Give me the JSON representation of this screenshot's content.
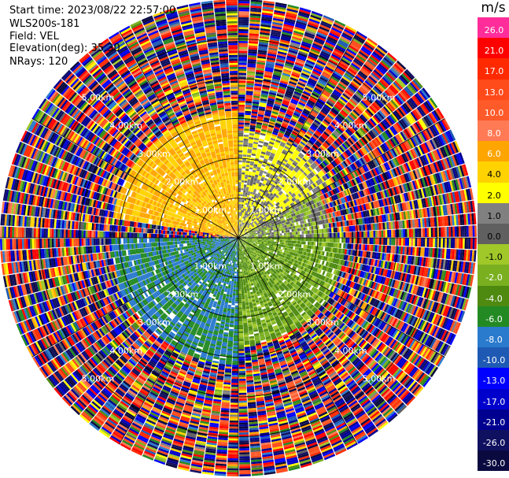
{
  "info": {
    "start_time": "Start time: 2023/08/22 22:57:00",
    "system": "WLS200s-181",
    "field": "Field: VEL",
    "elevation": "Elevation(deg): 35.30",
    "nrays": "NRays: 120"
  },
  "colorbar": {
    "unit": "m/s",
    "ticks": [
      "26.0",
      "21.0",
      "17.0",
      "13.0",
      "10.0",
      "8.0",
      "6.0",
      "4.0",
      "2.0",
      "1.0",
      "0.0",
      "-1.0",
      "-2.0",
      "-4.0",
      "-6.0",
      "-8.0",
      "-10.0",
      "-13.0",
      "-17.0",
      "-21.0",
      "-26.0",
      "-30.0"
    ],
    "colors": [
      "#ff2d9a",
      "#ff0000",
      "#ff2a00",
      "#ff4a1a",
      "#ff5a2a",
      "#ff7a55",
      "#ffa500",
      "#ffd200",
      "#ffff00",
      "#808080",
      "#606060",
      "#a0c828",
      "#7ab020",
      "#4e8a10",
      "#238a23",
      "#2a7acd",
      "#1e5ab4",
      "#0000ff",
      "#0000cc",
      "#000090",
      "#101060",
      "#0a0a40"
    ],
    "tick_text_dark": [
      "0.0",
      "1.0",
      "2.0",
      "4.0",
      "-1.0"
    ]
  },
  "chart_data": {
    "type": "heatmap",
    "projection": "PPI (polar, top-down)",
    "field": "VEL",
    "units": "m/s",
    "vmin": -30.0,
    "vmax": 26.0,
    "nrays": 120,
    "max_range_km": 6.0,
    "range_ring_labels": [
      "1.00km",
      "2.00km",
      "3.00km",
      "4.00km",
      "5.00km"
    ],
    "azimuth_lines_deg": [
      0,
      30,
      60,
      90,
      120,
      150,
      180,
      210,
      240,
      270,
      300,
      330
    ],
    "sectors": [
      {
        "azimuth_deg": [
          280,
          360
        ],
        "range_km": [
          0,
          3.2
        ],
        "velocity_m_s": 6,
        "note": "orange/yellow region"
      },
      {
        "azimuth_deg": [
          0,
          60
        ],
        "range_km": [
          0,
          2.7
        ],
        "velocity_m_s": 2,
        "note": "yellow region"
      },
      {
        "azimuth_deg": [
          60,
          90
        ],
        "range_km": [
          0,
          2.3
        ],
        "velocity_m_s": 0,
        "note": "grey region"
      },
      {
        "azimuth_deg": [
          90,
          180
        ],
        "range_km": [
          0,
          2.7
        ],
        "velocity_m_s": -2,
        "note": "light green region"
      },
      {
        "azimuth_deg": [
          180,
          270
        ],
        "range_km": [
          0,
          3.2
        ],
        "velocity_m_s": -6,
        "note": "dark green region"
      }
    ],
    "outer_noise_range_km": [
      3.0,
      6.0
    ]
  }
}
